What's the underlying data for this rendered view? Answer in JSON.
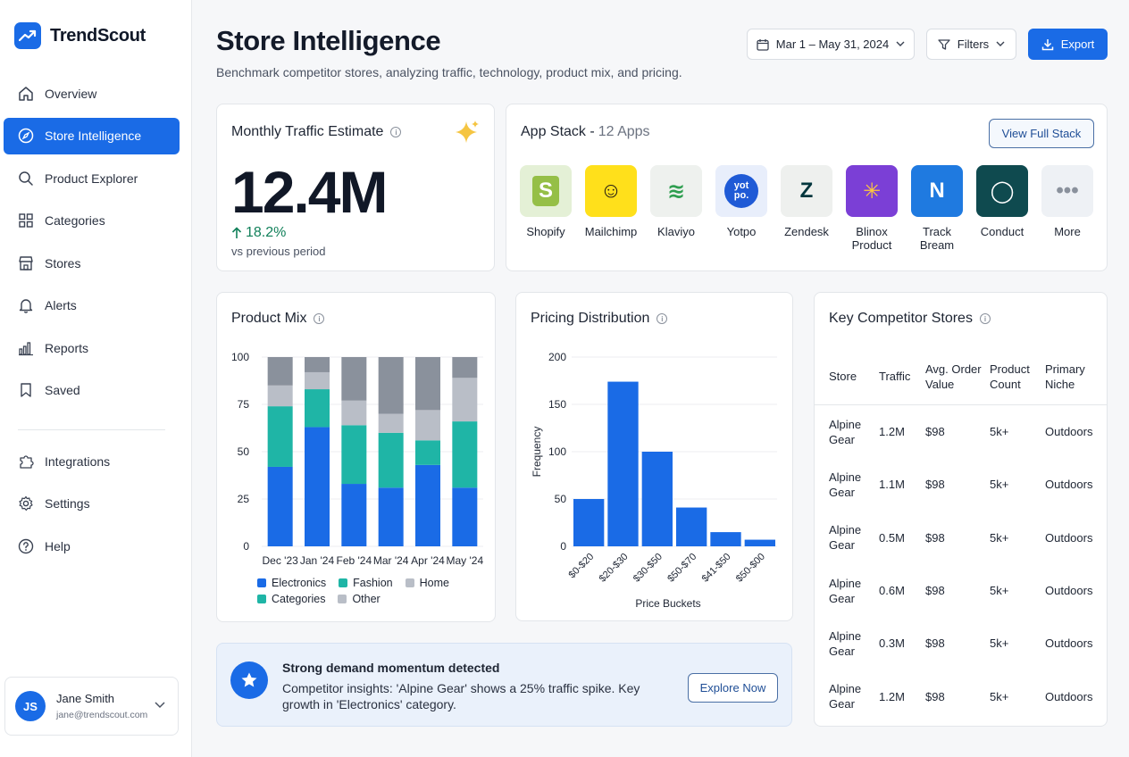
{
  "brand": {
    "name": "TrendScout"
  },
  "nav": [
    {
      "label": "Overview",
      "icon": "home-icon"
    },
    {
      "label": "Store Intelligence",
      "icon": "compass-icon",
      "active": true
    },
    {
      "label": "Product Explorer",
      "icon": "search-icon"
    },
    {
      "label": "Categories",
      "icon": "grid-icon"
    },
    {
      "label": "Stores",
      "icon": "store-icon"
    },
    {
      "label": "Alerts",
      "icon": "bell-icon"
    },
    {
      "label": "Reports",
      "icon": "bar-chart-icon"
    },
    {
      "label": "Saved",
      "icon": "bookmark-icon"
    }
  ],
  "nav_secondary": [
    {
      "label": "Integrations",
      "icon": "puzzle-icon"
    },
    {
      "label": "Settings",
      "icon": "gear-icon"
    },
    {
      "label": "Help",
      "icon": "help-icon"
    }
  ],
  "user": {
    "initials": "JS",
    "name": "Jane Smith",
    "email": "jane@trendscout.com"
  },
  "header": {
    "title": "Store Intelligence",
    "subtitle": "Benchmark competitor stores, analyzing traffic, technology, product mix, and pricing.",
    "date_range": "Mar 1 – May 31, 2024",
    "filters_label": "Filters",
    "export_label": "Export"
  },
  "traffic": {
    "title": "Monthly Traffic Estimate",
    "value": "12.4M",
    "change": "18.2%",
    "change_sub": "vs previous period"
  },
  "app_stack": {
    "title": "App Stack - ",
    "count": "12 Apps",
    "button": "View Full Stack",
    "apps": [
      {
        "name": "Shopify",
        "bg": "#e4f0d6",
        "glyph": "S",
        "color": "#5e8e3e"
      },
      {
        "name": "Mailchimp",
        "bg": "#ffe01b",
        "glyph": "☺",
        "color": "#241c15"
      },
      {
        "name": "Klaviyo",
        "bg": "#eef1ee",
        "glyph": "≋",
        "color": "#2e9e4f"
      },
      {
        "name": "Yotpo",
        "bg": "#e8eefb",
        "glyph": "yot po.",
        "color": "#ffffff"
      },
      {
        "name": "Zendesk",
        "bg": "#eef0ee",
        "glyph": "Z",
        "color": "#03363d"
      },
      {
        "name": "Blinox Product",
        "bg": "#7b3fd6",
        "glyph": "✳",
        "color": "#ffc83d"
      },
      {
        "name": "Track Bream",
        "bg": "#1f7ae0",
        "glyph": "N",
        "color": "#ffffff"
      },
      {
        "name": "Conduct",
        "bg": "#0f4a4f",
        "glyph": "◯",
        "color": "#ffffff"
      },
      {
        "name": "More",
        "bg": "#eef1f5",
        "glyph": "•••",
        "color": "#8a919c"
      }
    ]
  },
  "product_mix": {
    "title": "Product Mix",
    "legend": [
      "Electronics",
      "Fashion",
      "Home",
      "Categories",
      "Other"
    ]
  },
  "pricing": {
    "title": "Pricing Distribution"
  },
  "competitors": {
    "title": "Key Competitor Stores",
    "columns": [
      "Store",
      "Traffic",
      "Avg. Order Value",
      "Product Count",
      "Primary Niche"
    ],
    "rows": [
      [
        "Alpine Gear",
        "1.2M",
        "$98",
        "5k+",
        "Outdoors"
      ],
      [
        "Alpine Gear",
        "1.1M",
        "$98",
        "5k+",
        "Outdoors"
      ],
      [
        "Alpine Gear",
        "0.5M",
        "$98",
        "5k+",
        "Outdoors"
      ],
      [
        "Alpine Gear",
        "0.6M",
        "$98",
        "5k+",
        "Outdoors"
      ],
      [
        "Alpine Gear",
        "0.3M",
        "$98",
        "5k+",
        "Outdoors"
      ],
      [
        "Alpine Gear",
        "1.2M",
        "$98",
        "5k+",
        "Outdoors"
      ]
    ]
  },
  "banner": {
    "title": "Strong demand momentum detected",
    "text": "Competitor insights: 'Alpine Gear' shows a 25% traffic spike. Key growth in 'Electronics' category.",
    "button": "Explore Now"
  },
  "colors": {
    "accent": "#1a6be6",
    "electronics": "#1a6be6",
    "fashion": "#1fb5a6",
    "home": "#8a919c",
    "categories": "#1fb5a6",
    "other": "#b9bec7"
  },
  "chart_data": [
    {
      "type": "bar",
      "stacked": true,
      "title": "Product Mix",
      "categories": [
        "Dec '23",
        "Jan '24",
        "Feb '24",
        "Mar '24",
        "Apr '24",
        "May '24"
      ],
      "series": [
        {
          "name": "Electronics",
          "values": [
            42,
            63,
            33,
            31,
            43,
            31
          ]
        },
        {
          "name": "Fashion",
          "values": [
            32,
            20,
            31,
            29,
            13,
            35
          ]
        },
        {
          "name": "Other",
          "values": [
            11,
            9,
            13,
            10,
            16,
            23
          ]
        },
        {
          "name": "Home",
          "values": [
            15,
            8,
            23,
            30,
            28,
            11
          ]
        }
      ],
      "ylim": [
        0,
        100
      ],
      "yticks": [
        0,
        25,
        50,
        75,
        100
      ],
      "legend": "bottom",
      "grid": true
    },
    {
      "type": "bar",
      "title": "Pricing Distribution",
      "categories": [
        "$0-$20",
        "$20-$30",
        "$30-$50",
        "$50-$70",
        "$41-$50",
        "$50-$00"
      ],
      "values": [
        50,
        174,
        100,
        41,
        15,
        7
      ],
      "xlabel": "Price Buckets",
      "ylabel": "Frequency",
      "ylim": [
        0,
        200
      ],
      "yticks": [
        0,
        50,
        100,
        150,
        200
      ],
      "grid": true
    }
  ]
}
